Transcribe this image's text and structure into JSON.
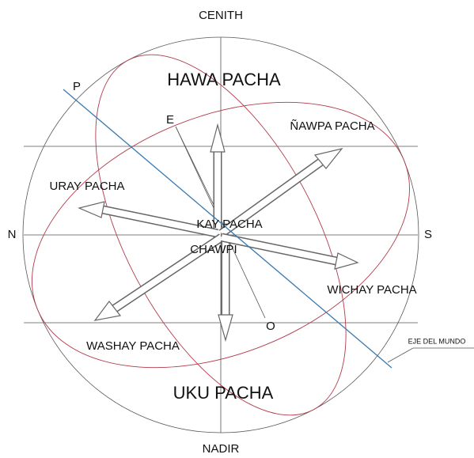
{
  "labels": {
    "cenith": "CENITH",
    "nadir": "NADIR",
    "north": "N",
    "south": "S",
    "p": "P",
    "e": "E",
    "o": "O",
    "hawa": "HAWA PACHA",
    "nawpa": "ÑAWPA PACHA",
    "uray": "URAY PACHA",
    "kay": "KAY PACHA",
    "chawpi": "CHAWPI",
    "wichay": "WICHAY PACHA",
    "washay": "WASHAY PACHA",
    "uku": "UKU PACHA",
    "eje": "EJE DEL MUNDO"
  }
}
